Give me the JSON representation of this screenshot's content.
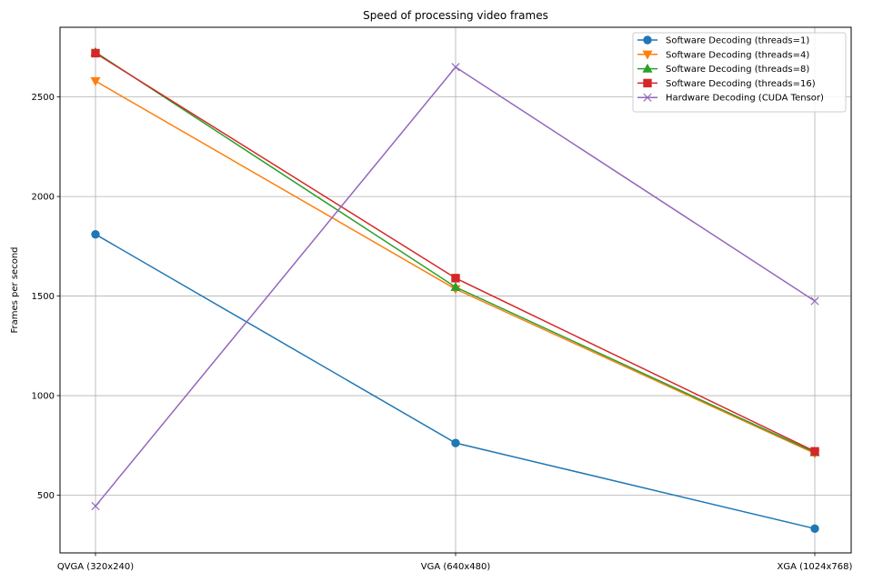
{
  "chart_data": {
    "type": "line",
    "title": "Speed of processing video frames",
    "xlabel": "",
    "ylabel": "Frames per second",
    "categories": [
      "QVGA (320x240)",
      "VGA (640x480)",
      "XGA (1024x768)"
    ],
    "ylim": [
      210,
      2850
    ],
    "yticks": [
      500,
      1000,
      1500,
      2000,
      2500
    ],
    "grid": true,
    "legend_position": "top-right",
    "series": [
      {
        "name": "Software Decoding (threads=1)",
        "values": [
          1810,
          762,
          332
        ],
        "color": "#1f77b4",
        "marker": "circle"
      },
      {
        "name": "Software Decoding (threads=4)",
        "values": [
          2580,
          1535,
          710
        ],
        "color": "#ff7f0e",
        "marker": "triangle-down"
      },
      {
        "name": "Software Decoding (threads=8)",
        "values": [
          2725,
          1545,
          715
        ],
        "color": "#2ca02c",
        "marker": "triangle-up"
      },
      {
        "name": "Software Decoding (threads=16)",
        "values": [
          2720,
          1590,
          720
        ],
        "color": "#d62728",
        "marker": "square"
      },
      {
        "name": "Hardware Decoding (CUDA Tensor)",
        "values": [
          445,
          2650,
          1475
        ],
        "color": "#9467bd",
        "marker": "x"
      }
    ]
  }
}
